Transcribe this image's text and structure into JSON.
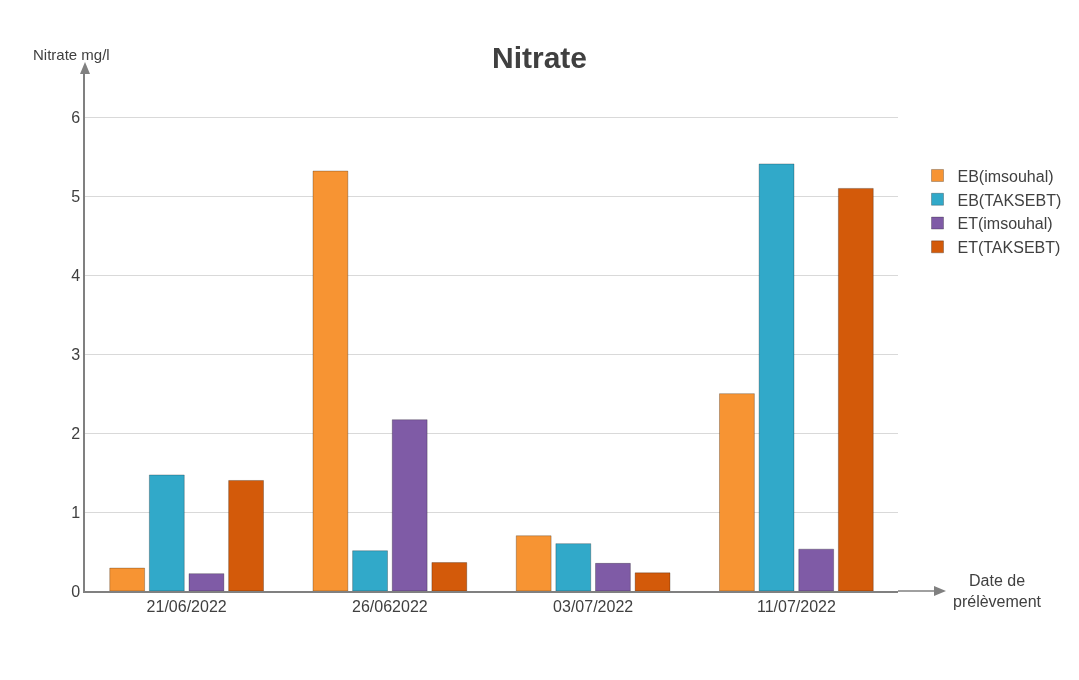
{
  "chart_data": {
    "type": "bar",
    "title": "Nitrate",
    "xlabel": "Date de prélèvement",
    "ylabel": "Nitrate mg/l",
    "categories": [
      "21/06/2022",
      "26/062022",
      "03/07/2022",
      "11/07/2022"
    ],
    "series": [
      {
        "name": "EB(imsouhal)",
        "color": "#f79433",
        "values": [
          0.29,
          5.32,
          0.7,
          2.5
        ]
      },
      {
        "name": "EB(TAKSEBT)",
        "color": "#31a9c9",
        "values": [
          1.47,
          0.51,
          0.6,
          5.41
        ]
      },
      {
        "name": "ET(imsouhal)",
        "color": "#7f5ba6",
        "values": [
          0.22,
          2.17,
          0.35,
          0.53
        ]
      },
      {
        "name": "ET(TAKSEBT)",
        "color": "#d35a0a",
        "values": [
          1.4,
          0.36,
          0.23,
          5.1
        ]
      }
    ],
    "ylim": [
      0,
      6.6
    ],
    "yticks": [
      0,
      1,
      2,
      3,
      4,
      5,
      6
    ],
    "grid": "y",
    "legend": "right"
  }
}
